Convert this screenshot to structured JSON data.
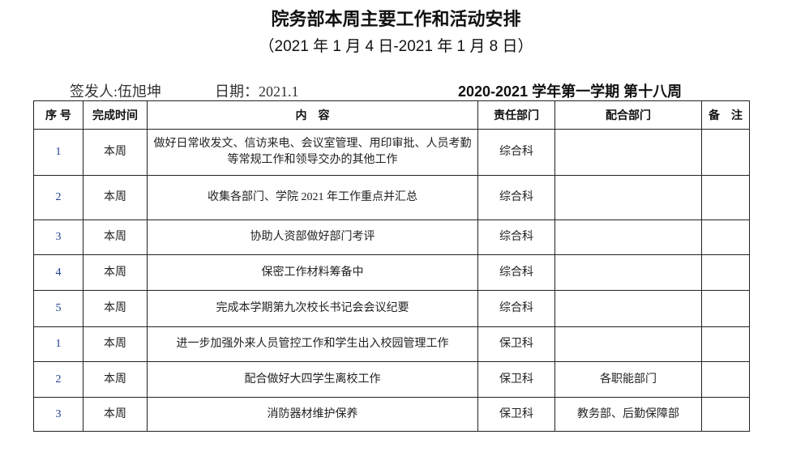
{
  "title": "院务部本周主要工作和活动安排",
  "subtitle": "（2021 年 1 月 4 日-2021 年 1 月 8 日）",
  "issuer": "签发人:伍旭坤",
  "date": "日期：2021.1",
  "term": "2020-2021 学年第一学期  第十八周",
  "headers": [
    "序 号",
    "完成时间",
    "内　容",
    "责任部门",
    "配合部门",
    "备　注"
  ],
  "rows": [
    {
      "no": "1",
      "time": "本周",
      "content": "做好日常收发文、信访来电、会议室管理、用印审批、人员考勤等常规工作和领导交办的其他工作",
      "dept": "综合科",
      "coop": "",
      "note": ""
    },
    {
      "no": "2",
      "time": "本周",
      "content": "收集各部门、学院 2021 年工作重点并汇总",
      "dept": "综合科",
      "coop": "",
      "note": ""
    },
    {
      "no": "3",
      "time": "本周",
      "content": "协助人资部做好部门考评",
      "dept": "综合科",
      "coop": "",
      "note": ""
    },
    {
      "no": "4",
      "time": "本周",
      "content": "保密工作材料筹备中",
      "dept": "综合科",
      "coop": "",
      "note": ""
    },
    {
      "no": "5",
      "time": "本周",
      "content": "完成本学期第九次校长书记会会议纪要",
      "dept": "综合科",
      "coop": "",
      "note": ""
    },
    {
      "no": "1",
      "time": "本周",
      "content": "进一步加强外来人员管控工作和学生出入校园管理工作",
      "dept": "保卫科",
      "coop": "",
      "note": ""
    },
    {
      "no": "2",
      "time": "本周",
      "content": "配合做好大四学生离校工作",
      "dept": "保卫科",
      "coop": "各职能部门",
      "note": ""
    },
    {
      "no": "3",
      "time": "本周",
      "content": "消防器材维护保养",
      "dept": "保卫科",
      "coop": "教务部、后勤保障部",
      "note": ""
    }
  ]
}
